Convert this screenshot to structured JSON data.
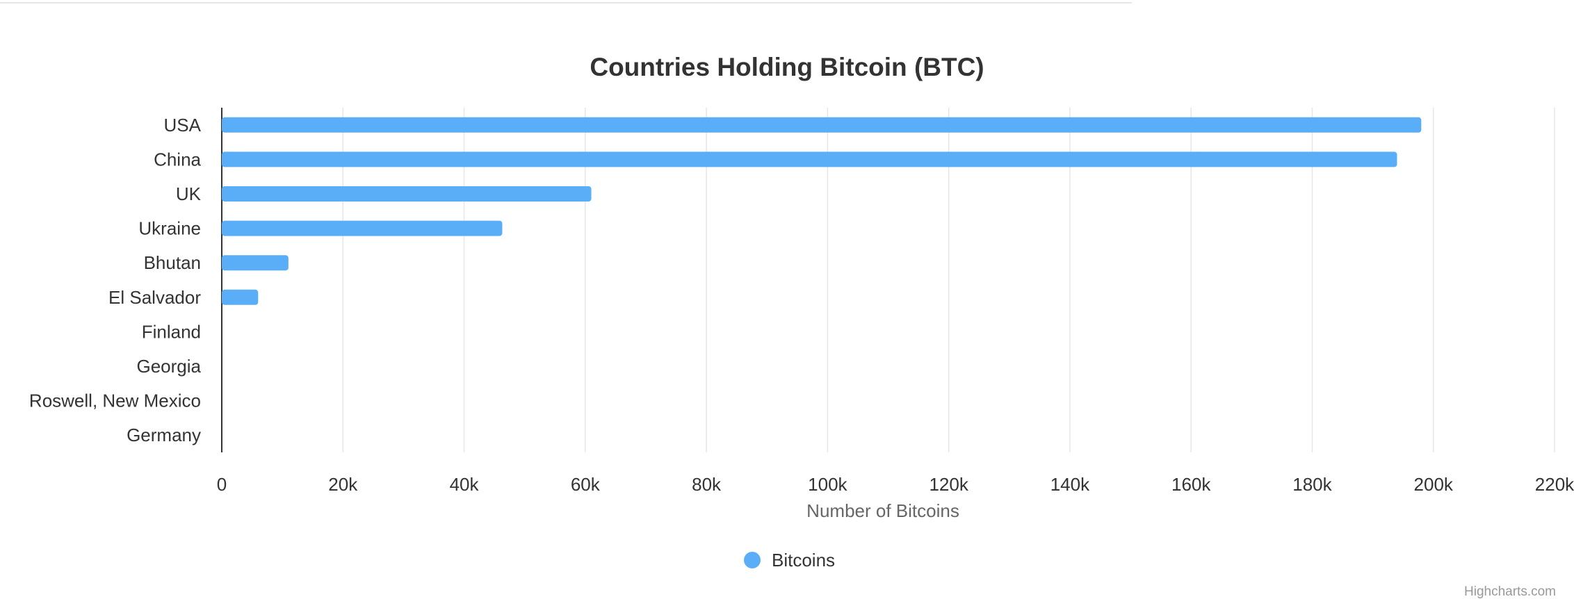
{
  "chart_data": {
    "type": "bar",
    "orientation": "horizontal",
    "title": "Countries Holding Bitcoin (BTC)",
    "categories": [
      "USA",
      "China",
      "UK",
      "Ukraine",
      "Bhutan",
      "El Salvador",
      "Finland",
      "Georgia",
      "Roswell, New Mexico",
      "Germany"
    ],
    "series": [
      {
        "name": "Bitcoins",
        "color": "#5aaef7",
        "values": [
          198000,
          194000,
          61000,
          46300,
          11000,
          6000,
          0,
          0,
          0,
          0
        ]
      }
    ],
    "xaxis": {
      "title": "Number of Bitcoins",
      "min": 0,
      "max": 220000,
      "tick_interval": 20000,
      "tick_labels": [
        "0",
        "20k",
        "40k",
        "60k",
        "80k",
        "100k",
        "120k",
        "140k",
        "160k",
        "180k",
        "200k",
        "220k"
      ]
    },
    "grid": true,
    "legend": "bottom-center",
    "credits": "Highcharts.com"
  }
}
